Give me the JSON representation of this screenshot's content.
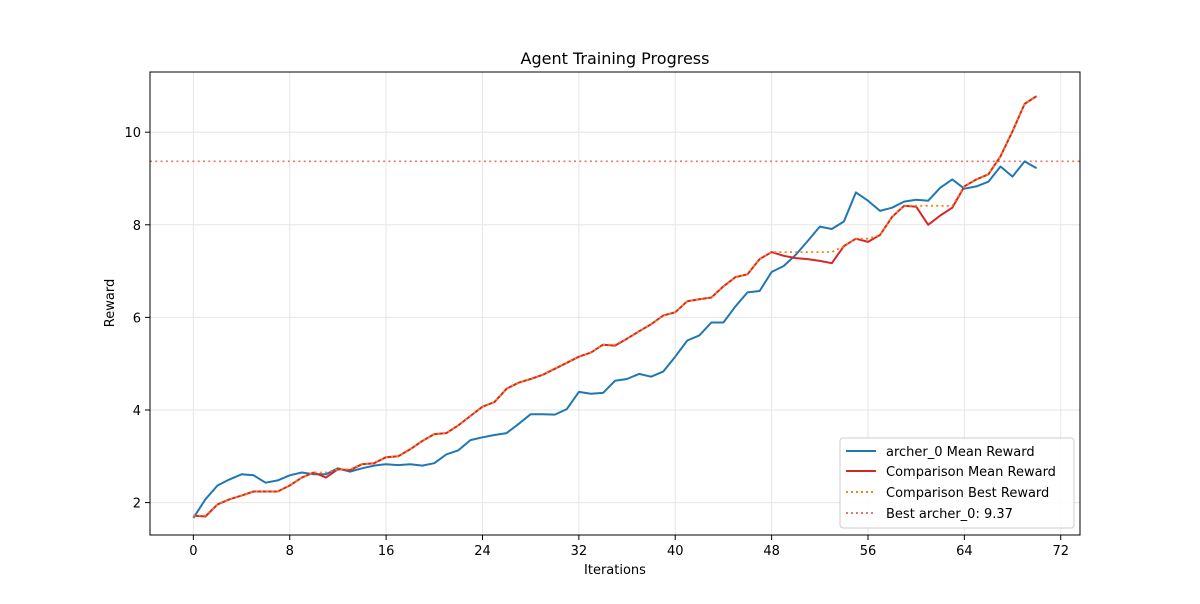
{
  "chart_data": {
    "type": "line",
    "title": "Agent Training Progress",
    "xlabel": "Iterations",
    "ylabel": "Reward",
    "xlim": [
      -3.6,
      73.6
    ],
    "ylim": [
      1.3,
      11.3
    ],
    "xticks": [
      0,
      8,
      16,
      24,
      32,
      40,
      48,
      56,
      64,
      72
    ],
    "yticks": [
      2,
      4,
      6,
      8,
      10
    ],
    "grid": true,
    "legend_position": "lower right",
    "x": [
      0,
      1,
      2,
      3,
      4,
      5,
      6,
      7,
      8,
      9,
      10,
      11,
      12,
      13,
      14,
      15,
      16,
      17,
      18,
      19,
      20,
      21,
      22,
      23,
      24,
      25,
      26,
      27,
      28,
      29,
      30,
      31,
      32,
      33,
      34,
      35,
      36,
      37,
      38,
      39,
      40,
      41,
      42,
      43,
      44,
      45,
      46,
      47,
      48,
      49,
      50,
      51,
      52,
      53,
      54,
      55,
      56,
      57,
      58,
      59,
      60,
      61,
      62,
      63,
      64,
      65,
      66,
      67,
      68,
      69,
      70
    ],
    "series": [
      {
        "name": "archer_0 Mean Reward",
        "color": "#1f77b4",
        "style": "solid",
        "values": [
          1.67,
          2.07,
          2.37,
          2.5,
          2.61,
          2.59,
          2.43,
          2.48,
          2.59,
          2.65,
          2.61,
          2.61,
          2.74,
          2.67,
          2.74,
          2.8,
          2.83,
          2.81,
          2.83,
          2.8,
          2.85,
          3.04,
          3.13,
          3.35,
          3.41,
          3.46,
          3.5,
          3.7,
          3.91,
          3.91,
          3.9,
          4.02,
          4.39,
          4.35,
          4.37,
          4.63,
          4.67,
          4.78,
          4.72,
          4.83,
          5.15,
          5.5,
          5.61,
          5.89,
          5.89,
          6.24,
          6.54,
          6.57,
          6.98,
          7.11,
          7.35,
          7.65,
          7.96,
          7.91,
          8.07,
          8.7,
          8.52,
          8.3,
          8.37,
          8.5,
          8.54,
          8.52,
          8.8,
          8.98,
          8.78,
          8.83,
          8.93,
          9.26,
          9.04,
          9.37,
          9.22
        ]
      },
      {
        "name": "Comparison Mean Reward",
        "color": "#d62728",
        "style": "solid",
        "values": [
          1.72,
          1.7,
          1.96,
          2.07,
          2.15,
          2.24,
          2.24,
          2.24,
          2.37,
          2.54,
          2.65,
          2.54,
          2.72,
          2.7,
          2.83,
          2.85,
          2.98,
          3.0,
          3.15,
          3.33,
          3.48,
          3.5,
          3.67,
          3.87,
          4.07,
          4.17,
          4.46,
          4.59,
          4.67,
          4.76,
          4.89,
          5.02,
          5.15,
          5.24,
          5.41,
          5.39,
          5.54,
          5.7,
          5.85,
          6.04,
          6.11,
          6.35,
          6.39,
          6.43,
          6.67,
          6.87,
          6.93,
          7.26,
          7.41,
          7.33,
          7.28,
          7.26,
          7.22,
          7.17,
          7.54,
          7.7,
          7.63,
          7.78,
          8.17,
          8.41,
          8.39,
          8.0,
          8.2,
          8.37,
          8.83,
          8.98,
          9.09,
          9.48,
          10.02,
          10.61,
          10.78
        ]
      },
      {
        "name": "Comparison Best Reward",
        "color": "#ff7f0e",
        "style": "dotted",
        "values": [
          1.72,
          1.72,
          1.96,
          2.07,
          2.15,
          2.24,
          2.24,
          2.24,
          2.37,
          2.54,
          2.65,
          2.65,
          2.72,
          2.72,
          2.83,
          2.85,
          2.98,
          3.0,
          3.15,
          3.33,
          3.48,
          3.5,
          3.67,
          3.87,
          4.07,
          4.17,
          4.46,
          4.59,
          4.67,
          4.76,
          4.89,
          5.02,
          5.15,
          5.24,
          5.41,
          5.41,
          5.54,
          5.7,
          5.85,
          6.04,
          6.11,
          6.35,
          6.39,
          6.43,
          6.67,
          6.87,
          6.93,
          7.26,
          7.41,
          7.41,
          7.41,
          7.41,
          7.41,
          7.41,
          7.54,
          7.7,
          7.7,
          7.78,
          8.17,
          8.41,
          8.41,
          8.41,
          8.41,
          8.41,
          8.83,
          8.98,
          9.09,
          9.48,
          10.02,
          10.61,
          10.78
        ]
      }
    ],
    "hlines": [
      {
        "name": "Best archer_0: 9.37",
        "y": 9.37,
        "color": "#e8736c",
        "style": "dotted"
      }
    ],
    "legend": [
      "archer_0 Mean Reward",
      "Comparison Mean Reward",
      "Comparison Best Reward",
      "Best archer_0: 9.37"
    ]
  }
}
